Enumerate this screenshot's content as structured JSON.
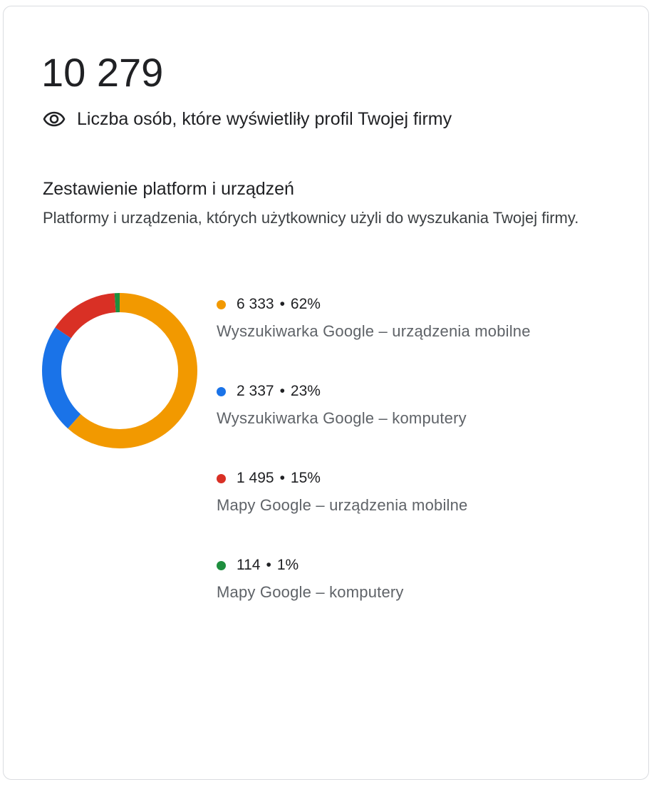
{
  "header": {
    "total": "10 279",
    "subtitle": "Liczba osób, które wyświetliły profil Twojej firmy",
    "icon": "eye-icon"
  },
  "section": {
    "title": "Zestawienie platform i urządzeń",
    "description": "Platformy i urządzenia, których użytkownicy użyli do wyszukania Twojej firmy."
  },
  "legend": {
    "separator": "•",
    "items": [
      {
        "value": "6 333",
        "percent": "62%",
        "label": "Wyszukiwarka Google – urządzenia mobilne",
        "color": "#f29900"
      },
      {
        "value": "2 337",
        "percent": "23%",
        "label": "Wyszukiwarka Google – komputery",
        "color": "#1a73e8"
      },
      {
        "value": "1 495",
        "percent": "15%",
        "label": "Mapy Google – urządzenia mobilne",
        "color": "#d93025"
      },
      {
        "value": "114",
        "percent": "1%",
        "label": "Mapy Google – komputery",
        "color": "#1e8e3e"
      }
    ]
  },
  "chart_data": {
    "type": "pie",
    "variant": "donut",
    "title": "Zestawienie platform i urządzeń",
    "total": 10279,
    "categories": [
      "Wyszukiwarka Google – urządzenia mobilne",
      "Wyszukiwarka Google – komputery",
      "Mapy Google – urządzenia mobilne",
      "Mapy Google – komputery"
    ],
    "values": [
      6333,
      2337,
      1495,
      114
    ],
    "percentages": [
      62,
      23,
      15,
      1
    ],
    "colors": [
      "#f29900",
      "#1a73e8",
      "#d93025",
      "#1e8e3e"
    ],
    "start_angle": "12 o'clock, clockwise",
    "legend_position": "right"
  }
}
